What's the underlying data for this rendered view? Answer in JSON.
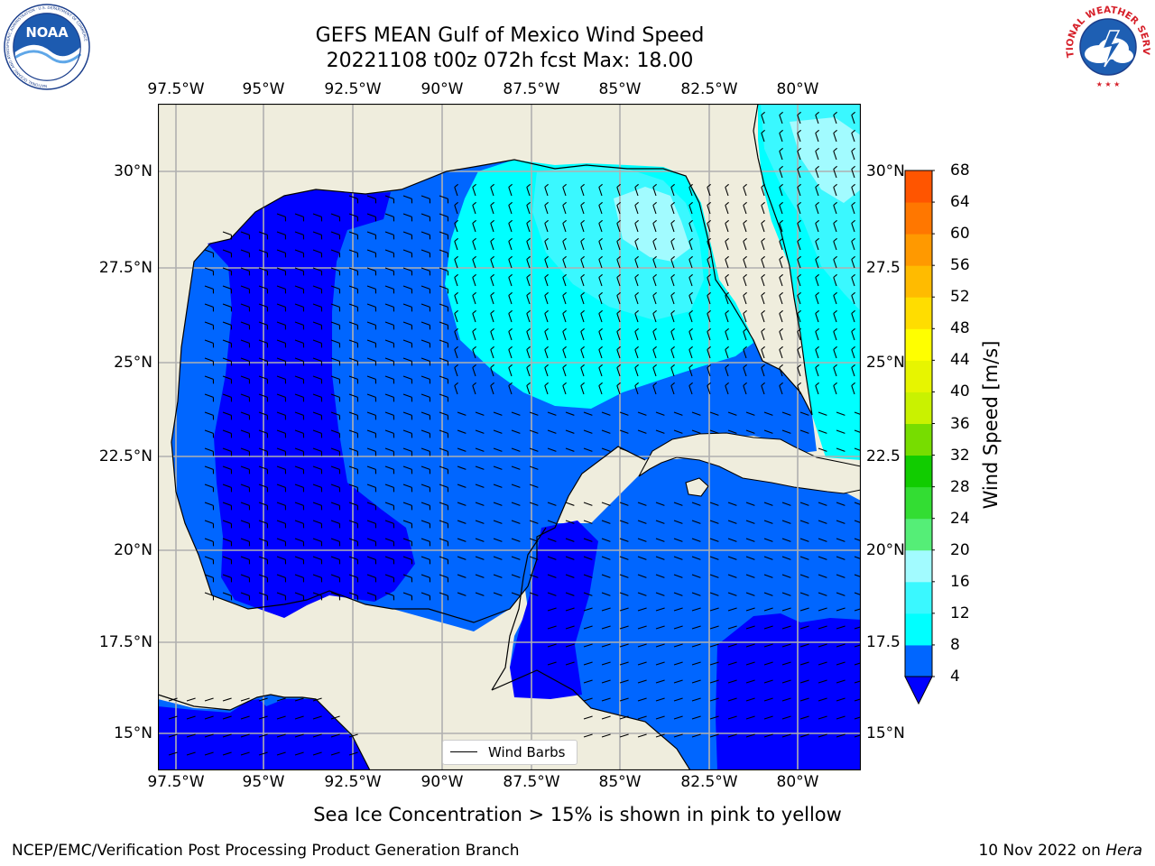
{
  "header": {
    "title_line1": "GEFS MEAN Gulf of Mexico Wind Speed",
    "title_line2": "20221108 t00z 072h fcst   Max: 18.00"
  },
  "logos": {
    "noaa": {
      "text": "NOAA",
      "ring_text": "NATIONAL OCEANIC AND ATMOSPHERIC ADMINISTRATION · U.S. DEPARTMENT OF COMMERCE"
    },
    "nws": {
      "ring_text": "NATIONAL WEATHER SERVICE"
    }
  },
  "map": {
    "lon_labels": [
      "97.5°W",
      "95°W",
      "92.5°W",
      "90°W",
      "87.5°W",
      "85°W",
      "82.5°W",
      "80°W"
    ],
    "lat_labels_left": [
      "30°N",
      "27.5°N",
      "25°N",
      "22.5°N",
      "20°N",
      "17.5°N",
      "15°N"
    ],
    "lat_labels_right": [
      "30°N",
      "27.5",
      "25°N",
      "22.5",
      "20°N",
      "17.5",
      "15°N"
    ],
    "legend_label": "Wind Barbs",
    "land_color": "#efeddd",
    "grid_color": "#b0b0b0"
  },
  "colorbar": {
    "label": "Wind Speed [m/s]",
    "ticks": [
      "4",
      "8",
      "12",
      "16",
      "20",
      "24",
      "28",
      "32",
      "36",
      "40",
      "44",
      "48",
      "52",
      "56",
      "60",
      "64",
      "68"
    ],
    "colors": [
      "#0066ff",
      "#00ffff",
      "#3af8ff",
      "#a2fbff",
      "#55ee77",
      "#33dd33",
      "#11cc00",
      "#77dd00",
      "#c9f200",
      "#e7f500",
      "#ffff00",
      "#ffdd00",
      "#ffbb00",
      "#ff9900",
      "#ff7700",
      "#ff5500",
      "#ff2200",
      "#ff0000"
    ],
    "under_color": "#0000ff"
  },
  "notes": {
    "sea_ice": "Sea Ice Concentration > 15% is shown in pink to yellow"
  },
  "footer": {
    "left": "NCEP/EMC/Verification Post Processing Product Generation Branch",
    "right_prefix": "10 Nov 2022 on ",
    "right_machine": "Hera"
  }
}
